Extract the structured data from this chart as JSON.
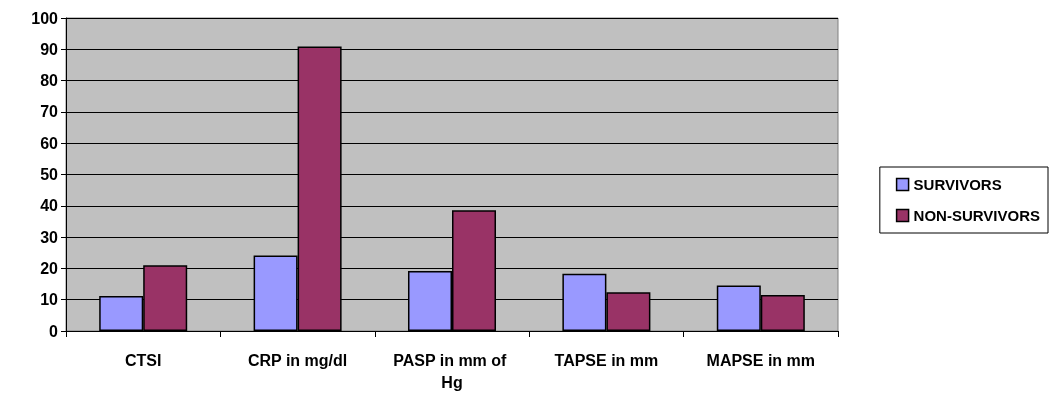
{
  "chart_data": {
    "type": "bar",
    "categories": [
      "CTSI",
      "CRP in mg/dl",
      "PASP in mm of Hg",
      "TAPSE in mm",
      "MAPSE in mm"
    ],
    "series": [
      {
        "name": "SURVIVORS",
        "color": "#9999ff",
        "values": [
          11.2,
          24.1,
          19.2,
          18.3,
          14.5
        ]
      },
      {
        "name": "NON-SURVIVORS",
        "color": "#993366",
        "values": [
          21.0,
          90.9,
          38.6,
          12.4,
          11.5
        ]
      }
    ],
    "ylim": [
      0,
      100
    ],
    "yticks": [
      0,
      10,
      20,
      30,
      40,
      50,
      60,
      70,
      80,
      90,
      100
    ],
    "grid": "y",
    "legend": "right"
  }
}
